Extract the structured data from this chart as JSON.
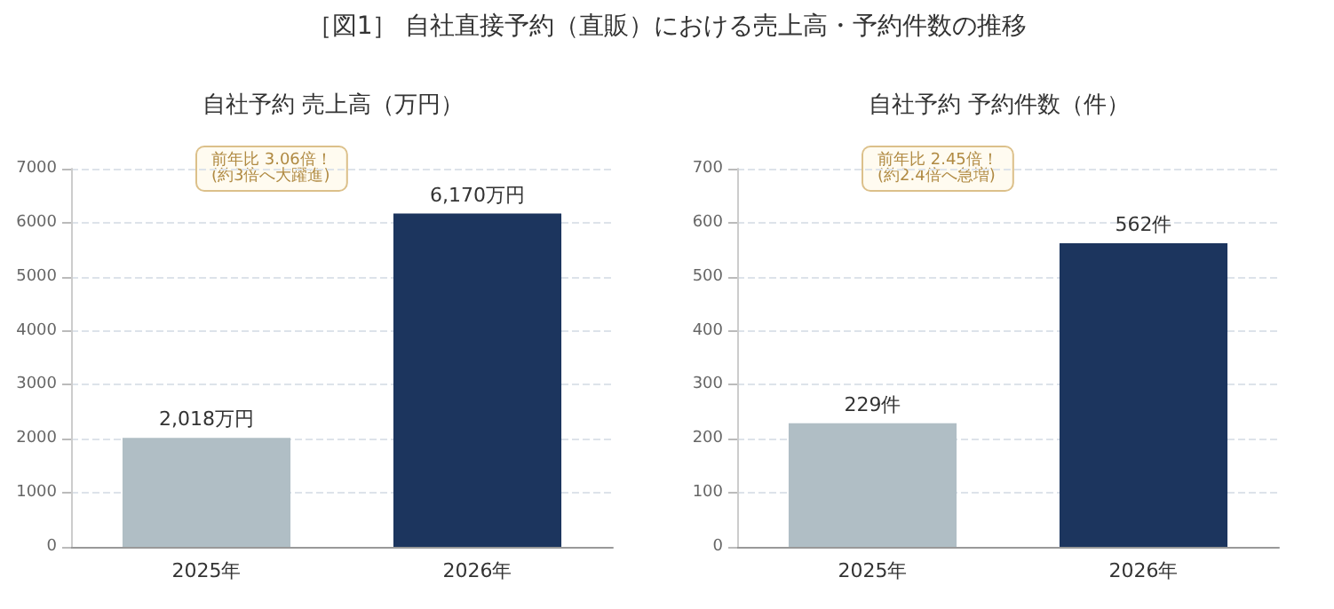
{
  "chart_data": [
    {
      "type": "bar",
      "title": "［図1］ 自社直接予約（直販）における売上高・予約件数の推移",
      "subtitle": "自社予約 売上高（万円）",
      "categories": [
        "2025年",
        "2026年"
      ],
      "values": [
        2018,
        6170
      ],
      "colors": [
        "#b0bec5",
        "#1c355e"
      ],
      "value_labels": [
        "2,018万円",
        "6,170万円"
      ],
      "ylim": [
        0,
        7000
      ],
      "yticks": [
        0,
        1000,
        2000,
        3000,
        4000,
        5000,
        6000,
        7000
      ],
      "grid": "y",
      "annotations": [
        "前年比 3.06倍！\n(約3倍へ大躍進)"
      ]
    },
    {
      "type": "bar",
      "title": "自社予約 予約件数（件）",
      "categories": [
        "2025年",
        "2026年"
      ],
      "values": [
        229,
        562
      ],
      "colors": [
        "#b0bec5",
        "#1c355e"
      ],
      "value_labels": [
        "229件",
        "562件"
      ],
      "ylim": [
        0,
        700
      ],
      "yticks": [
        0,
        100,
        200,
        300,
        400,
        500,
        600,
        700
      ],
      "grid": "y",
      "annotations": [
        "前年比 2.45倍！\n(約2.4倍へ急増)"
      ]
    }
  ]
}
